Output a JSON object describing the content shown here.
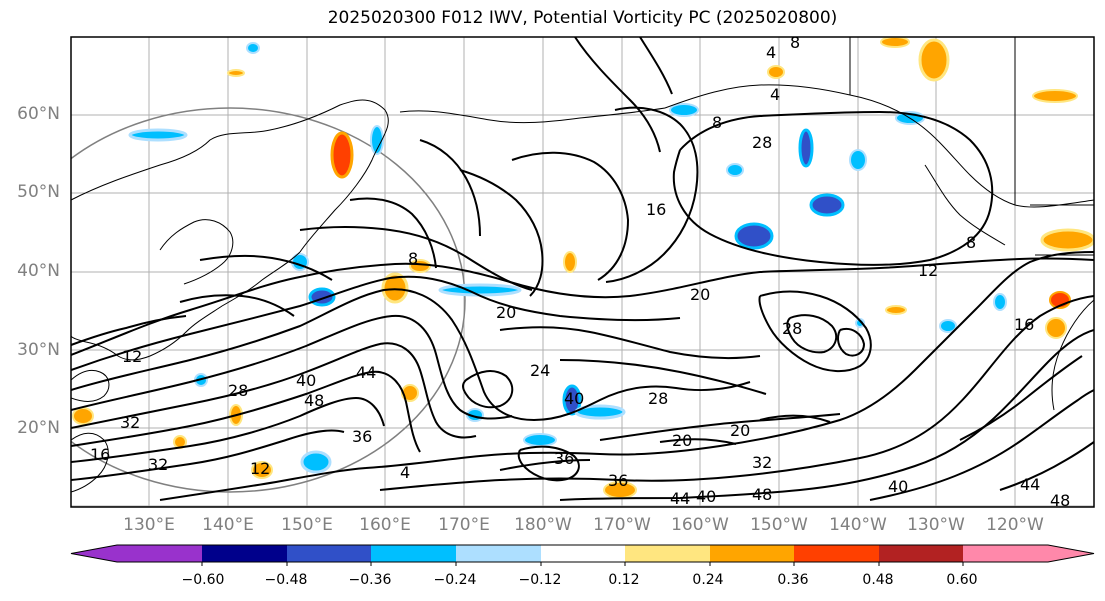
{
  "title": "2025020300 F012 IWV, Potential Vorticity PC (2025020800)",
  "map": {
    "lat_labels": [
      "60°N",
      "50°N",
      "40°N",
      "30°N",
      "20°N"
    ],
    "lon_labels": [
      "130°E",
      "140°E",
      "150°E",
      "160°E",
      "170°E",
      "180°W",
      "170°W",
      "160°W",
      "150°W",
      "140°W",
      "130°W",
      "120°W"
    ],
    "contour_labels": [
      "4",
      "8",
      "4",
      "8",
      "28",
      "16",
      "8",
      "12",
      "20",
      "20",
      "28",
      "24",
      "8",
      "16",
      "12",
      "28",
      "40",
      "44",
      "48",
      "36",
      "32",
      "40",
      "28",
      "20",
      "36",
      "32",
      "12",
      "32",
      "16",
      "4",
      "20",
      "36",
      "40",
      "44",
      "48",
      "40",
      "44",
      "48"
    ]
  },
  "colorbar": {
    "ticks": [
      "−0.60",
      "−0.48",
      "−0.36",
      "−0.24",
      "−0.12",
      "0.12",
      "0.24",
      "0.36",
      "0.48",
      "0.60"
    ],
    "colors": [
      "#9932CC",
      "#00008B",
      "#3050C8",
      "#00BFFF",
      "#ADDFFF",
      "#FFFFFF",
      "#FFE680",
      "#FFA500",
      "#FF4000",
      "#B22222",
      "#FF88AA"
    ]
  }
}
